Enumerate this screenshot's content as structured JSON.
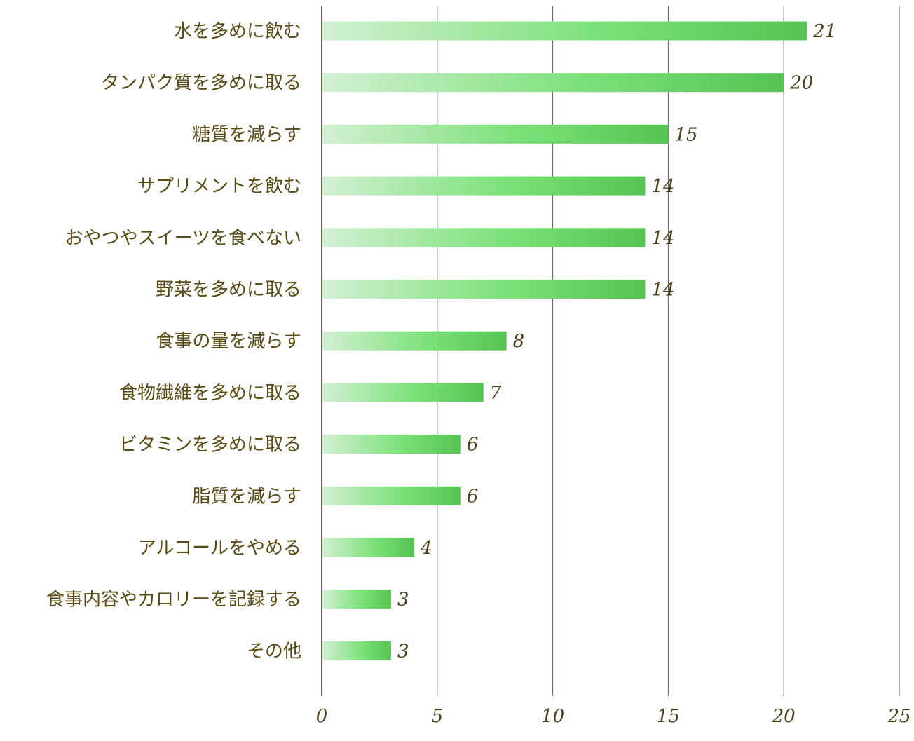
{
  "chart_data": {
    "type": "bar",
    "orientation": "horizontal",
    "categories": [
      "水を多めに飲む",
      "タンパク質を多めに取る",
      "糖質を減らす",
      "サプリメントを飲む",
      "おやつやスイーツを食べない",
      "野菜を多めに取る",
      "食事の量を減らす",
      "食物繊維を多めに取る",
      "ビタミンを多めに取る",
      "脂質を減らす",
      "アルコールをやめる",
      "食事内容やカロリーを記録する",
      "その他"
    ],
    "values": [
      21,
      20,
      15,
      14,
      14,
      14,
      8,
      7,
      6,
      6,
      4,
      3,
      3
    ],
    "value_labels": [
      "21",
      "20",
      "15",
      "14",
      "14",
      "14",
      "8",
      "7",
      "6",
      "6",
      "4",
      "3",
      "3"
    ],
    "xlim": [
      0,
      25
    ],
    "xticks": [
      "0",
      "5",
      "10",
      "15",
      "20",
      "25"
    ],
    "grid": "vertical",
    "colors": {
      "bar_start": "#d3f0d3",
      "bar_mid": "#7ee27c",
      "bar_end": "#55c452",
      "axis": "#4a2e2e",
      "grid": "#6b5555",
      "category_text": "#5a4a14",
      "value_text": "#4e3f1d"
    }
  }
}
